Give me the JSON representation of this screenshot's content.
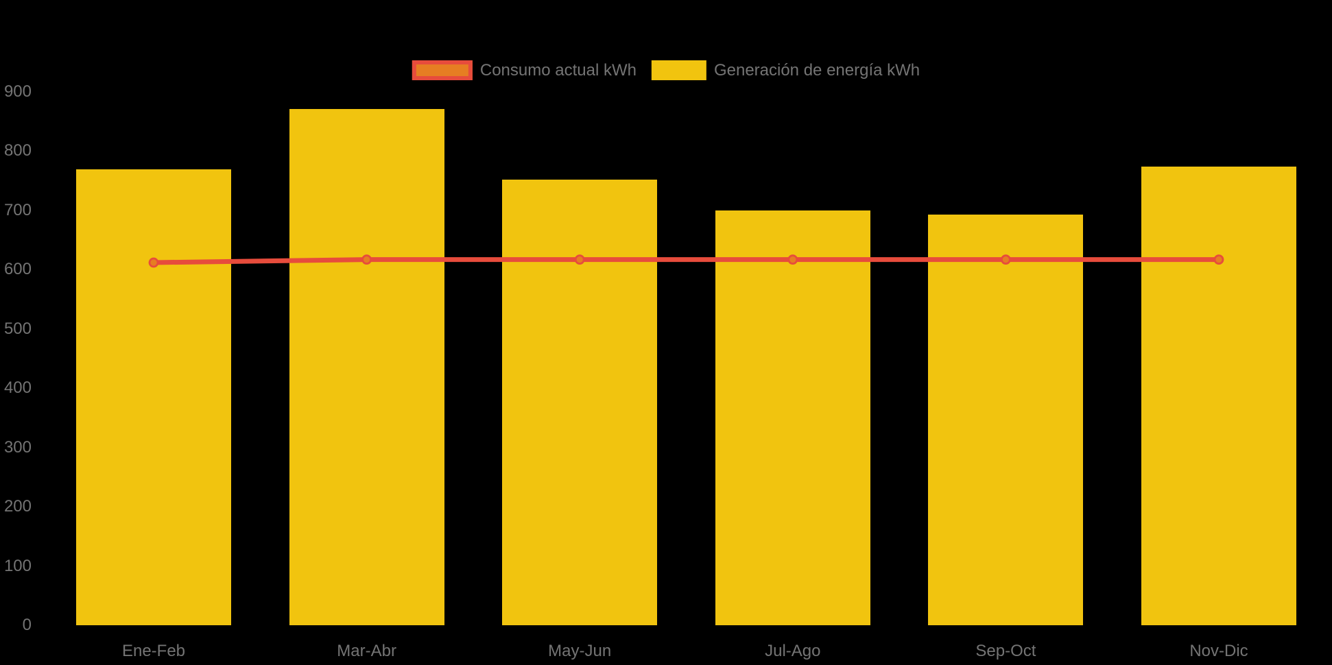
{
  "chart_data": {
    "type": "bar",
    "subtype": "bar-line-combo",
    "title": "",
    "xlabel": "",
    "ylabel": "",
    "categories": [
      "Ene-Feb",
      "Mar-Abr",
      "May-Jun",
      "Jul-Ago",
      "Sep-Oct",
      "Nov-Dic"
    ],
    "series": [
      {
        "name": "Consumo actual kWh",
        "type": "line",
        "values": [
          612,
          617,
          617,
          617,
          617,
          617
        ],
        "line_color": "#E74C3C",
        "point_fill_color": "#E67E22",
        "point_stroke_color": "#E74C3C"
      },
      {
        "name": "Generación de energía kWh",
        "type": "bar",
        "values": [
          769,
          871,
          752,
          700,
          693,
          774
        ],
        "bar_color": "#F1C40F"
      }
    ],
    "ylim": [
      0,
      900
    ],
    "y_ticks": [
      0,
      100,
      200,
      300,
      400,
      500,
      600,
      700,
      800,
      900
    ],
    "grid": false,
    "legend_position": "top-center",
    "background_color": "#000000",
    "text_color": "#747474"
  }
}
